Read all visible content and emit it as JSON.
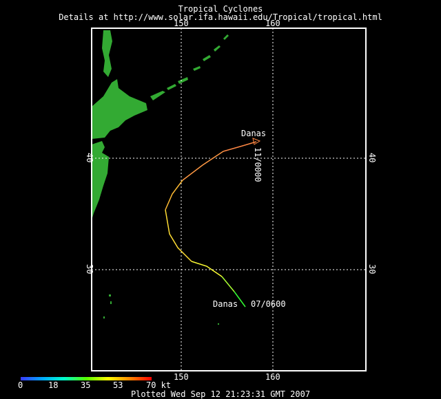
{
  "header": {
    "title": "Tropical Cyclones",
    "subtitle": "Details at http://www.solar.ifa.hawaii.edu/Tropical/tropical.html"
  },
  "map": {
    "longitude_ticks": [
      "150",
      "160"
    ],
    "latitude_ticks": [
      "40",
      "30"
    ],
    "land_color": "#33aa33",
    "grid_color": "#ffffff",
    "storm": {
      "name_start": "Danas",
      "name_end": "Danas",
      "start_label": "07/0600",
      "end_label": "11/0000"
    }
  },
  "legend": {
    "labels": [
      "0",
      "18",
      "35",
      "53",
      "70 kt"
    ]
  },
  "footer": {
    "plotted": "Plotted Wed Sep 12 21:23:31 GMT 2007"
  }
}
